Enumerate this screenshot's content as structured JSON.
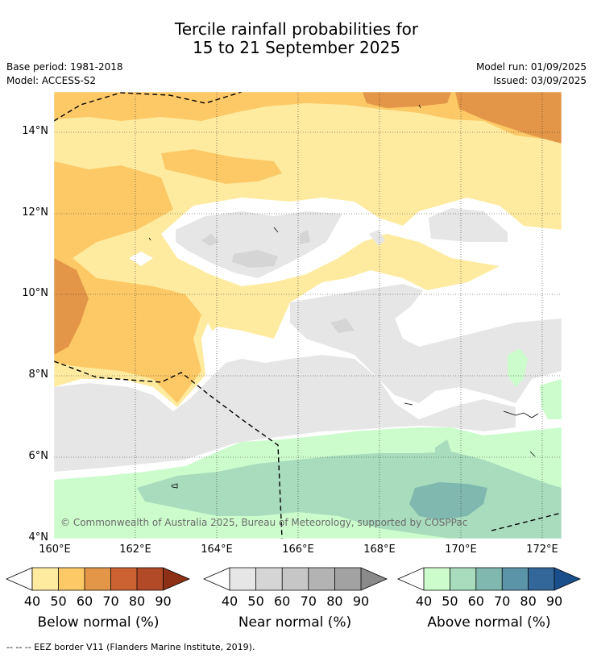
{
  "title_line1": "Tercile rainfall probabilities for",
  "title_line2": "15 to 21 September 2025",
  "base_period": "Base period: 1981-2018",
  "model": "Model: ACCESS-S2",
  "model_run": "Model run: 01/09/2025",
  "issued": "Issued: 03/09/2025",
  "copyright": "© Commonwealth of Australia 2025, Bureau of Meteorology, supported by COSPPac",
  "footer": "--  --  -- EEZ border V11 (Flanders Marine Institute, 2019).",
  "lat_labels": [
    "14°N",
    "12°N",
    "10°N",
    "8°N",
    "6°N",
    "4°N"
  ],
  "lon_labels": [
    "160°E",
    "162°E",
    "164°E",
    "166°E",
    "168°E",
    "170°E",
    "172°E"
  ],
  "colorbars": [
    {
      "title": "Below normal (%)",
      "ticks": [
        "40",
        "50",
        "60",
        "70",
        "80",
        "90"
      ],
      "colors": [
        "#ffeba0",
        "#fdc966",
        "#e39648",
        "#cc6232",
        "#b34a27"
      ],
      "end_color": "#8e3016"
    },
    {
      "title": "Near normal (%)",
      "ticks": [
        "40",
        "50",
        "60",
        "70",
        "80",
        "90"
      ],
      "colors": [
        "#e6e6e6",
        "#d5d5d5",
        "#c6c6c6",
        "#b3b3b3",
        "#a2a2a2"
      ],
      "end_color": "#8a8a8a"
    },
    {
      "title": "Above normal (%)",
      "ticks": [
        "40",
        "50",
        "60",
        "70",
        "80",
        "90"
      ],
      "colors": [
        "#ccfccc",
        "#a8dcbd",
        "#80b8b0",
        "#5b93a8",
        "#336699"
      ],
      "end_color": "#1a4f8c"
    }
  ]
}
